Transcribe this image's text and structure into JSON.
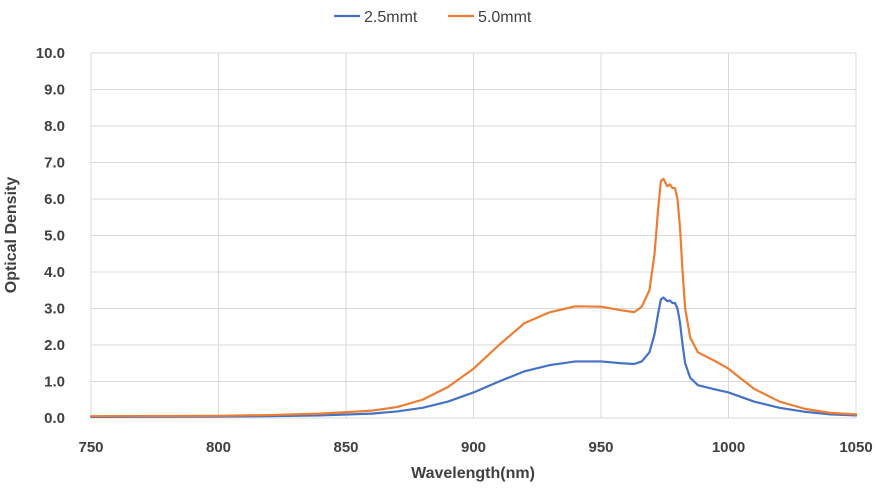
{
  "chart_data": {
    "type": "line",
    "xlabel": "Wavelength(nm)",
    "ylabel": "Optical Density",
    "xlim": [
      750,
      1050
    ],
    "ylim": [
      0,
      10
    ],
    "x_ticks": [
      "750",
      "800",
      "850",
      "900",
      "950",
      "1000",
      "1050"
    ],
    "y_ticks": [
      "0.0",
      "1.0",
      "2.0",
      "3.0",
      "4.0",
      "5.0",
      "6.0",
      "7.0",
      "8.0",
      "9.0",
      "10.0"
    ],
    "grid": "vertical and horizontal",
    "legend_position": "top-center",
    "series": [
      {
        "name": "2.5mmt",
        "color": "#4472C4",
        "points": [
          [
            750,
            0.03
          ],
          [
            800,
            0.04
          ],
          [
            820,
            0.05
          ],
          [
            840,
            0.07
          ],
          [
            860,
            0.12
          ],
          [
            870,
            0.18
          ],
          [
            880,
            0.28
          ],
          [
            890,
            0.45
          ],
          [
            900,
            0.7
          ],
          [
            910,
            1.0
          ],
          [
            920,
            1.28
          ],
          [
            930,
            1.45
          ],
          [
            940,
            1.55
          ],
          [
            950,
            1.55
          ],
          [
            958,
            1.5
          ],
          [
            963,
            1.48
          ],
          [
            966,
            1.55
          ],
          [
            969,
            1.8
          ],
          [
            971,
            2.3
          ],
          [
            972.5,
            2.9
          ],
          [
            973.5,
            3.25
          ],
          [
            974.5,
            3.3
          ],
          [
            976,
            3.2
          ],
          [
            977,
            3.22
          ],
          [
            978,
            3.15
          ],
          [
            979,
            3.15
          ],
          [
            980,
            3.0
          ],
          [
            981,
            2.6
          ],
          [
            982,
            2.0
          ],
          [
            983,
            1.5
          ],
          [
            985,
            1.1
          ],
          [
            988,
            0.9
          ],
          [
            995,
            0.78
          ],
          [
            1000,
            0.7
          ],
          [
            1010,
            0.45
          ],
          [
            1020,
            0.28
          ],
          [
            1030,
            0.17
          ],
          [
            1040,
            0.1
          ],
          [
            1050,
            0.07
          ]
        ]
      },
      {
        "name": "5.0mmt",
        "color": "#ED7D31",
        "points": [
          [
            750,
            0.05
          ],
          [
            800,
            0.06
          ],
          [
            820,
            0.08
          ],
          [
            840,
            0.12
          ],
          [
            860,
            0.2
          ],
          [
            870,
            0.3
          ],
          [
            880,
            0.5
          ],
          [
            890,
            0.85
          ],
          [
            900,
            1.35
          ],
          [
            910,
            2.0
          ],
          [
            920,
            2.6
          ],
          [
            930,
            2.9
          ],
          [
            940,
            3.06
          ],
          [
            950,
            3.05
          ],
          [
            958,
            2.95
          ],
          [
            963,
            2.9
          ],
          [
            966,
            3.05
          ],
          [
            969,
            3.5
          ],
          [
            971,
            4.5
          ],
          [
            972.5,
            5.8
          ],
          [
            973.5,
            6.5
          ],
          [
            974.5,
            6.55
          ],
          [
            976,
            6.35
          ],
          [
            977,
            6.4
          ],
          [
            978,
            6.3
          ],
          [
            979,
            6.3
          ],
          [
            980,
            6.0
          ],
          [
            981,
            5.2
          ],
          [
            982,
            4.0
          ],
          [
            983,
            3.0
          ],
          [
            985,
            2.2
          ],
          [
            988,
            1.8
          ],
          [
            995,
            1.55
          ],
          [
            1000,
            1.35
          ],
          [
            1010,
            0.8
          ],
          [
            1020,
            0.45
          ],
          [
            1030,
            0.25
          ],
          [
            1040,
            0.14
          ],
          [
            1050,
            0.1
          ]
        ]
      }
    ]
  }
}
